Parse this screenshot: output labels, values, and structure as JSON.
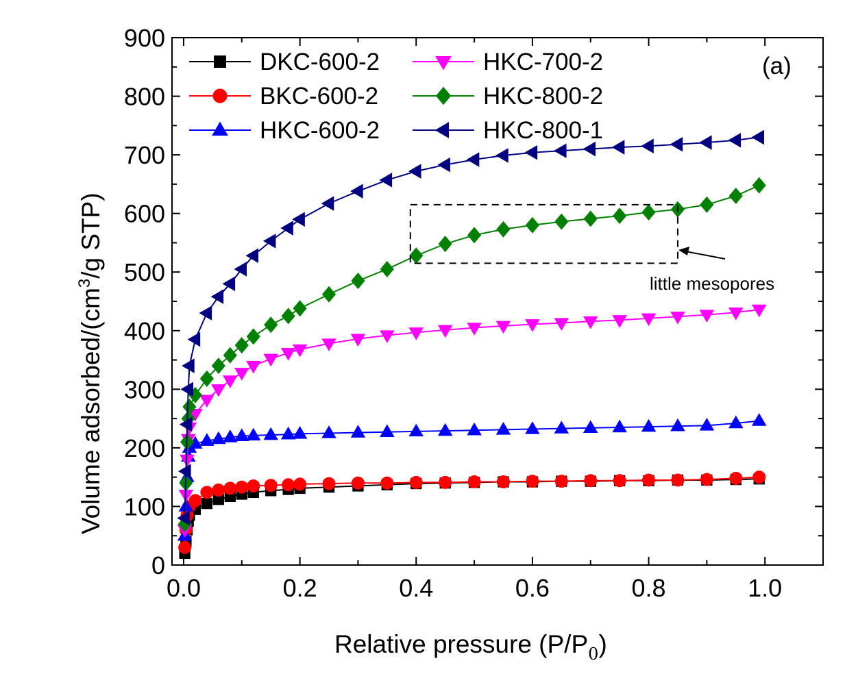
{
  "chart_data": {
    "type": "line",
    "panel_label": "(a)",
    "xlabel": "Relative pressure (P/P",
    "xlabel_sub": "0",
    "xlabel_close": ")",
    "ylabel_pre": "Volume adsorbed/(cm",
    "ylabel_sup": "3",
    "ylabel_post": "/g STP)",
    "xlim": [
      -0.02,
      1.1
    ],
    "ylim": [
      0,
      900
    ],
    "x_ticks": [
      "0.0",
      "0.2",
      "0.4",
      "0.6",
      "0.8",
      "1.0"
    ],
    "y_ticks": [
      "0",
      "100",
      "200",
      "300",
      "400",
      "500",
      "600",
      "700",
      "800",
      "900"
    ],
    "legend_position": "top-left",
    "grid": false,
    "annotation": {
      "text": "little mesopores",
      "box_x": [
        0.39,
        0.85
      ],
      "box_y": [
        515,
        615
      ]
    },
    "series": [
      {
        "name": "DKC-600-2",
        "color": "#000000",
        "marker": "square",
        "points": [
          [
            0.002,
            20
          ],
          [
            0.004,
            40
          ],
          [
            0.006,
            60
          ],
          [
            0.008,
            75
          ],
          [
            0.01,
            85
          ],
          [
            0.02,
            95
          ],
          [
            0.04,
            105
          ],
          [
            0.06,
            112
          ],
          [
            0.08,
            117
          ],
          [
            0.1,
            121
          ],
          [
            0.12,
            124
          ],
          [
            0.15,
            127
          ],
          [
            0.18,
            129
          ],
          [
            0.2,
            131
          ],
          [
            0.25,
            133
          ],
          [
            0.3,
            135
          ],
          [
            0.35,
            137
          ],
          [
            0.4,
            139
          ],
          [
            0.45,
            140
          ],
          [
            0.5,
            141
          ],
          [
            0.55,
            142
          ],
          [
            0.6,
            142
          ],
          [
            0.65,
            143
          ],
          [
            0.7,
            143
          ],
          [
            0.75,
            144
          ],
          [
            0.8,
            144
          ],
          [
            0.85,
            145
          ],
          [
            0.9,
            145
          ],
          [
            0.95,
            146
          ],
          [
            0.99,
            147
          ]
        ]
      },
      {
        "name": "BKC-600-2",
        "color": "#ff0000",
        "marker": "circle",
        "points": [
          [
            0.002,
            30
          ],
          [
            0.004,
            60
          ],
          [
            0.006,
            85
          ],
          [
            0.01,
            100
          ],
          [
            0.02,
            110
          ],
          [
            0.04,
            124
          ],
          [
            0.06,
            128
          ],
          [
            0.08,
            131
          ],
          [
            0.1,
            133
          ],
          [
            0.12,
            135
          ],
          [
            0.15,
            136
          ],
          [
            0.18,
            137
          ],
          [
            0.2,
            138
          ],
          [
            0.25,
            139
          ],
          [
            0.3,
            140
          ],
          [
            0.35,
            140
          ],
          [
            0.4,
            141
          ],
          [
            0.45,
            141
          ],
          [
            0.5,
            142
          ],
          [
            0.55,
            142
          ],
          [
            0.6,
            143
          ],
          [
            0.65,
            143
          ],
          [
            0.7,
            144
          ],
          [
            0.75,
            144
          ],
          [
            0.8,
            145
          ],
          [
            0.85,
            145
          ],
          [
            0.9,
            146
          ],
          [
            0.95,
            148
          ],
          [
            0.99,
            150
          ]
        ]
      },
      {
        "name": "HKC-600-2",
        "color": "#0000ff",
        "marker": "triangle-up",
        "points": [
          [
            0.002,
            50
          ],
          [
            0.004,
            100
          ],
          [
            0.006,
            150
          ],
          [
            0.008,
            185
          ],
          [
            0.01,
            200
          ],
          [
            0.02,
            207
          ],
          [
            0.04,
            212
          ],
          [
            0.06,
            215
          ],
          [
            0.08,
            218
          ],
          [
            0.1,
            220
          ],
          [
            0.12,
            221
          ],
          [
            0.15,
            222
          ],
          [
            0.18,
            223
          ],
          [
            0.2,
            224
          ],
          [
            0.25,
            225
          ],
          [
            0.3,
            226
          ],
          [
            0.35,
            227
          ],
          [
            0.4,
            228
          ],
          [
            0.45,
            229
          ],
          [
            0.5,
            230
          ],
          [
            0.55,
            231
          ],
          [
            0.6,
            232
          ],
          [
            0.65,
            233
          ],
          [
            0.7,
            234
          ],
          [
            0.75,
            235
          ],
          [
            0.8,
            236
          ],
          [
            0.85,
            237
          ],
          [
            0.9,
            238
          ],
          [
            0.95,
            242
          ],
          [
            0.99,
            246
          ]
        ]
      },
      {
        "name": "HKC-700-2",
        "color": "#ff00ff",
        "marker": "triangle-down",
        "points": [
          [
            0.002,
            60
          ],
          [
            0.004,
            120
          ],
          [
            0.006,
            180
          ],
          [
            0.008,
            215
          ],
          [
            0.01,
            235
          ],
          [
            0.02,
            258
          ],
          [
            0.04,
            282
          ],
          [
            0.06,
            300
          ],
          [
            0.08,
            315
          ],
          [
            0.1,
            328
          ],
          [
            0.12,
            340
          ],
          [
            0.15,
            352
          ],
          [
            0.18,
            362
          ],
          [
            0.2,
            368
          ],
          [
            0.25,
            378
          ],
          [
            0.3,
            386
          ],
          [
            0.35,
            392
          ],
          [
            0.4,
            397
          ],
          [
            0.45,
            401
          ],
          [
            0.5,
            405
          ],
          [
            0.55,
            408
          ],
          [
            0.6,
            411
          ],
          [
            0.65,
            413
          ],
          [
            0.7,
            416
          ],
          [
            0.75,
            418
          ],
          [
            0.8,
            421
          ],
          [
            0.85,
            424
          ],
          [
            0.9,
            427
          ],
          [
            0.95,
            431
          ],
          [
            0.99,
            436
          ]
        ]
      },
      {
        "name": "HKC-800-2",
        "color": "#008000",
        "marker": "diamond",
        "points": [
          [
            0.002,
            70
          ],
          [
            0.004,
            140
          ],
          [
            0.006,
            210
          ],
          [
            0.008,
            250
          ],
          [
            0.01,
            270
          ],
          [
            0.02,
            290
          ],
          [
            0.04,
            318
          ],
          [
            0.06,
            340
          ],
          [
            0.08,
            358
          ],
          [
            0.1,
            375
          ],
          [
            0.12,
            390
          ],
          [
            0.15,
            410
          ],
          [
            0.18,
            425
          ],
          [
            0.2,
            438
          ],
          [
            0.25,
            462
          ],
          [
            0.3,
            485
          ],
          [
            0.35,
            505
          ],
          [
            0.4,
            528
          ],
          [
            0.45,
            548
          ],
          [
            0.5,
            563
          ],
          [
            0.55,
            573
          ],
          [
            0.6,
            580
          ],
          [
            0.65,
            586
          ],
          [
            0.7,
            591
          ],
          [
            0.75,
            596
          ],
          [
            0.8,
            602
          ],
          [
            0.85,
            607
          ],
          [
            0.9,
            615
          ],
          [
            0.95,
            630
          ],
          [
            0.99,
            648
          ]
        ]
      },
      {
        "name": "HKC-800-1",
        "color": "#000080",
        "marker": "triangle-left",
        "points": [
          [
            0.002,
            80
          ],
          [
            0.004,
            160
          ],
          [
            0.006,
            240
          ],
          [
            0.008,
            300
          ],
          [
            0.01,
            340
          ],
          [
            0.02,
            385
          ],
          [
            0.04,
            430
          ],
          [
            0.06,
            458
          ],
          [
            0.08,
            480
          ],
          [
            0.1,
            505
          ],
          [
            0.12,
            528
          ],
          [
            0.15,
            553
          ],
          [
            0.18,
            575
          ],
          [
            0.2,
            590
          ],
          [
            0.25,
            617
          ],
          [
            0.3,
            638
          ],
          [
            0.35,
            657
          ],
          [
            0.4,
            672
          ],
          [
            0.45,
            683
          ],
          [
            0.5,
            692
          ],
          [
            0.55,
            699
          ],
          [
            0.6,
            704
          ],
          [
            0.65,
            707
          ],
          [
            0.7,
            710
          ],
          [
            0.75,
            713
          ],
          [
            0.8,
            715
          ],
          [
            0.85,
            718
          ],
          [
            0.9,
            721
          ],
          [
            0.95,
            725
          ],
          [
            0.99,
            730
          ]
        ]
      }
    ]
  }
}
